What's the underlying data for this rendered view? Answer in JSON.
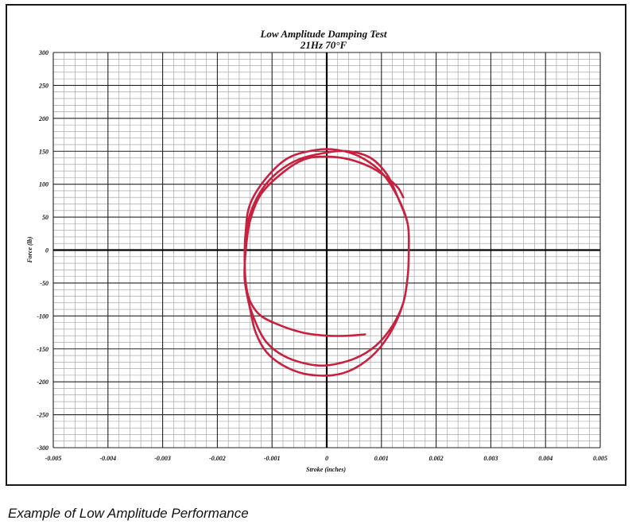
{
  "caption": "Example of Low Amplitude Performance",
  "chart_data": {
    "type": "line",
    "title": "Low Amplitude Damping Test",
    "subtitle": "21Hz   70°F",
    "xlabel": "Stroke (inches)",
    "ylabel": "Force (lb)",
    "xlim": [
      -0.005,
      0.005
    ],
    "ylim": [
      -300,
      300
    ],
    "grid": true,
    "x_ticks": [
      "-0.005",
      "-0.004",
      "-0.003",
      "-0.002",
      "-0.001",
      "0",
      "0.001",
      "0.002",
      "0.003",
      "0.004",
      "0.005"
    ],
    "y_ticks": [
      "300",
      "250",
      "200",
      "150",
      "100",
      "50",
      "0",
      "-50",
      "-100",
      "-150",
      "-200",
      "-250",
      "-300"
    ],
    "line_color": "#c8203f",
    "series": [
      {
        "x": [
          0.0007,
          0.0004,
          0.0,
          -0.0004,
          -0.0008,
          -0.0012,
          -0.0014,
          -0.00148,
          -0.0015,
          -0.00148,
          -0.0014,
          -0.0012,
          -0.0009,
          -0.0005,
          0.0,
          0.0004,
          0.0008,
          0.0011,
          0.0013,
          0.00148,
          0.0015,
          0.00148,
          0.0014,
          0.0012,
          0.0009,
          0.0005,
          0.0,
          -0.0004,
          -0.0008,
          -0.0011,
          -0.0013,
          -0.00145,
          -0.0015,
          -0.00148,
          -0.0014,
          -0.0011,
          -0.0007,
          -0.0002,
          0.0002,
          0.0006,
          0.001,
          0.0013,
          0.00148,
          0.0015,
          0.00148,
          0.0014,
          0.0012,
          0.0009,
          0.0005,
          0.0001,
          -0.0004,
          -0.0008,
          -0.0011,
          -0.0013,
          -0.0014,
          -0.0015,
          -0.00148,
          -0.0014,
          -0.0012,
          -0.0008,
          -0.0004,
          0.0,
          0.0004,
          0.0008,
          0.0011,
          0.0013,
          0.0014
        ],
        "y": [
          -128,
          -130,
          -130,
          -126,
          -116,
          -100,
          -78,
          -50,
          -15,
          20,
          55,
          90,
          118,
          138,
          148,
          150,
          140,
          115,
          80,
          40,
          0,
          -40,
          -80,
          -115,
          -145,
          -165,
          -175,
          -172,
          -160,
          -140,
          -110,
          -70,
          -20,
          30,
          70,
          110,
          140,
          152,
          152,
          142,
          118,
          80,
          40,
          0,
          -40,
          -80,
          -120,
          -155,
          -180,
          -190,
          -188,
          -175,
          -155,
          -125,
          -90,
          -45,
          0,
          45,
          85,
          118,
          138,
          142,
          138,
          126,
          110,
          95,
          80
        ]
      }
    ]
  }
}
